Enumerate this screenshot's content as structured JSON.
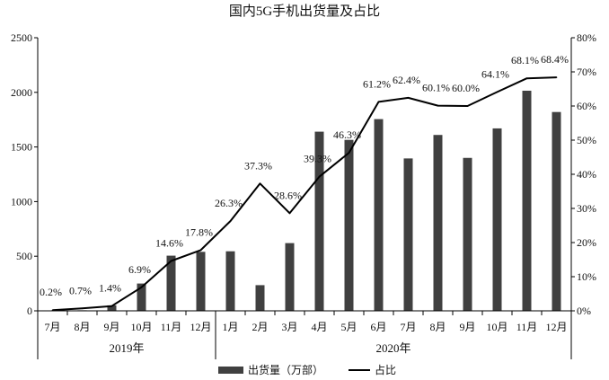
{
  "chart_data": {
    "type": "bar",
    "title": "国内5G手机出货量及占比",
    "categories": [
      "7月",
      "8月",
      "9月",
      "10月",
      "11月",
      "12月",
      "1月",
      "2月",
      "3月",
      "4月",
      "5月",
      "6月",
      "7月",
      "8月",
      "9月",
      "10月",
      "11月",
      "12月"
    ],
    "groups": [
      {
        "label": "2019年",
        "start": 0,
        "end": 5
      },
      {
        "label": "2020年",
        "start": 6,
        "end": 17
      }
    ],
    "series": [
      {
        "name": "出货量（万部）",
        "type": "bar",
        "axis": "left",
        "color": "#404040",
        "values": [
          0,
          5,
          50,
          250,
          505,
          540,
          545,
          235,
          620,
          1640,
          1565,
          1755,
          1395,
          1610,
          1400,
          1670,
          2015,
          1820
        ]
      },
      {
        "name": "占比",
        "type": "line",
        "axis": "right",
        "color": "#000000",
        "values": [
          0.2,
          0.7,
          1.4,
          6.9,
          14.6,
          17.8,
          26.3,
          37.3,
          28.6,
          39.3,
          46.3,
          61.2,
          62.4,
          60.1,
          60.0,
          64.1,
          68.1,
          68.4
        ],
        "labels": [
          "0.2%",
          "0.7%",
          "1.4%",
          "6.9%",
          "14.6%",
          "17.8%",
          "26.3%",
          "37.3%",
          "28.6%",
          "39.3%",
          "46.3%",
          "61.2%",
          "62.4%",
          "60.1%",
          "60.0%",
          "64.1%",
          "68.1%",
          "68.4%"
        ]
      }
    ],
    "y_left": {
      "min": 0,
      "max": 2500,
      "ticks": [
        "0",
        "500",
        "1000",
        "1500",
        "2000",
        "2500"
      ],
      "tick_values": [
        0,
        500,
        1000,
        1500,
        2000,
        2500
      ]
    },
    "y_right": {
      "min": 0,
      "max": 80,
      "ticks": [
        "0%",
        "10%",
        "20%",
        "30%",
        "40%",
        "50%",
        "60%",
        "70%",
        "80%"
      ],
      "tick_values": [
        0,
        10,
        20,
        30,
        40,
        50,
        60,
        70,
        80
      ]
    },
    "grid": false,
    "legend_position": "bottom"
  }
}
